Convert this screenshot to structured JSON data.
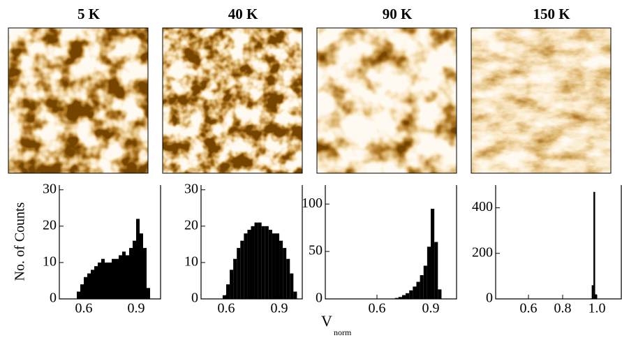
{
  "chart_data": [
    {
      "type": "histogram",
      "title": "5 K",
      "ylabel": "No. of Counts",
      "bins": [
        0.56,
        0.58,
        0.6,
        0.62,
        0.64,
        0.66,
        0.68,
        0.7,
        0.72,
        0.74,
        0.76,
        0.78,
        0.8,
        0.82,
        0.84,
        0.86,
        0.88,
        0.9,
        0.92,
        0.94,
        0.96,
        0.98
      ],
      "values": [
        2,
        4,
        6,
        7,
        8,
        9,
        10,
        11,
        10,
        10,
        11,
        11,
        12,
        13,
        12,
        14,
        16,
        22,
        18,
        14,
        3
      ],
      "color": "#000000",
      "xlim": [
        0.46,
        1.04
      ],
      "ylim": [
        0,
        31.3
      ],
      "xticks": [
        0.6,
        0.9
      ],
      "yticks": [
        0,
        10,
        20,
        30
      ]
    },
    {
      "type": "histogram",
      "title": "40 K",
      "xlabel": "V",
      "xlabel_sub": "norm",
      "bins": [
        0.58,
        0.6,
        0.62,
        0.64,
        0.66,
        0.68,
        0.7,
        0.72,
        0.74,
        0.76,
        0.78,
        0.8,
        0.82,
        0.84,
        0.86,
        0.88,
        0.9,
        0.92,
        0.94,
        0.96,
        0.98,
        1.0
      ],
      "values": [
        1,
        4,
        8,
        11,
        14,
        16,
        18,
        19,
        20,
        21,
        21,
        20,
        20,
        19,
        18,
        18,
        16,
        14,
        11,
        7,
        2
      ],
      "color": "#000000",
      "xlim": [
        0.458,
        1.03
      ],
      "ylim": [
        0,
        31.3
      ],
      "xticks": [
        0.6,
        0.9
      ],
      "yticks": [
        0,
        10,
        20,
        30
      ]
    },
    {
      "type": "histogram",
      "title": "90 K",
      "bins": [
        0.7,
        0.72,
        0.74,
        0.76,
        0.78,
        0.8,
        0.82,
        0.84,
        0.86,
        0.88,
        0.9,
        0.92,
        0.94,
        0.96
      ],
      "values": [
        1,
        2,
        4,
        6,
        9,
        13,
        18,
        25,
        35,
        55,
        95,
        60,
        10
      ],
      "color": "#000000",
      "xlim": [
        0.312,
        1.044
      ],
      "ylim": [
        0,
        120
      ],
      "xticks": [
        0.6,
        0.9
      ],
      "yticks": [
        0,
        50,
        100
      ]
    },
    {
      "type": "histogram",
      "title": "150   K",
      "bins": [
        0.96,
        0.97,
        0.98,
        0.99,
        1.0
      ],
      "values": [
        2,
        60,
        470,
        20
      ],
      "color": "#000000",
      "xlim": [
        0.408,
        1.143
      ],
      "ylim": [
        0,
        500
      ],
      "xticks": [
        0.6,
        0.8,
        {
          "value": 1.0,
          "label": "1.0"
        }
      ],
      "yticks": [
        0,
        200,
        400
      ]
    }
  ]
}
